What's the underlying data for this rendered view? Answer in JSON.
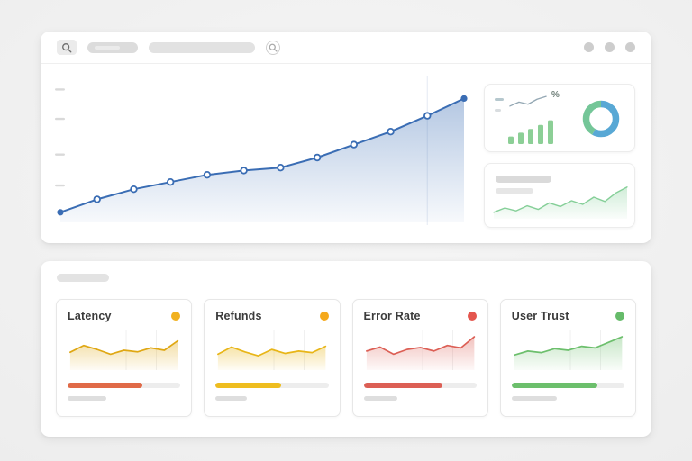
{
  "app": {
    "kpi_percent_label": "%"
  },
  "chart_data": [
    {
      "id": "main-trend",
      "type": "line",
      "title": "",
      "x": [
        1,
        2,
        3,
        4,
        5,
        6,
        7,
        8,
        9,
        10,
        11,
        12
      ],
      "values": [
        7,
        16,
        23,
        28,
        33,
        36,
        38,
        45,
        54,
        63,
        74,
        86
      ],
      "color": "#3a6db4",
      "markers": true,
      "ylim": [
        0,
        100
      ],
      "grid": "minimal"
    },
    {
      "id": "kpi-sparkline",
      "type": "line",
      "values": [
        22,
        48,
        34,
        66,
        84
      ],
      "color": "#93a7b3"
    },
    {
      "id": "kpi-bars",
      "type": "bar",
      "values": [
        30,
        45,
        60,
        76,
        94
      ],
      "color": "#8ccf96"
    },
    {
      "id": "kpi-donut",
      "type": "donut",
      "segments": [
        {
          "value": 58,
          "color": "#58a8d5"
        },
        {
          "value": 42,
          "color": "#74c698"
        }
      ]
    },
    {
      "id": "summary-sparkline",
      "type": "area",
      "values": [
        18,
        30,
        22,
        36,
        26,
        44,
        34,
        50,
        40,
        60,
        48,
        72,
        88
      ],
      "color": "#85cf98"
    }
  ],
  "metrics": [
    {
      "label": "Latency",
      "dot_color": "#f1b11f",
      "line_color": "#dfa713",
      "values": [
        45,
        62,
        52,
        40,
        50,
        46,
        56,
        50,
        74
      ],
      "progress": {
        "color": "#e06a48",
        "pct": 66
      },
      "ghost_pct": 34
    },
    {
      "label": "Refunds",
      "dot_color": "#f5a91c",
      "line_color": "#e8b517",
      "values": [
        40,
        58,
        46,
        36,
        52,
        42,
        48,
        44,
        60
      ],
      "progress": {
        "color": "#eebd1f",
        "pct": 58
      },
      "ghost_pct": 28
    },
    {
      "label": "Error Rate",
      "dot_color": "#e4564e",
      "line_color": "#dc5f55",
      "values": [
        48,
        58,
        40,
        52,
        57,
        48,
        62,
        56,
        84
      ],
      "progress": {
        "color": "#dc5f55",
        "pct": 70
      },
      "ghost_pct": 30
    },
    {
      "label": "User Trust",
      "dot_color": "#66bb6a",
      "line_color": "#6cbf6c",
      "values": [
        38,
        48,
        44,
        54,
        50,
        60,
        56,
        70,
        84
      ],
      "progress": {
        "color": "#6cbf6c",
        "pct": 76
      },
      "ghost_pct": 40
    }
  ]
}
